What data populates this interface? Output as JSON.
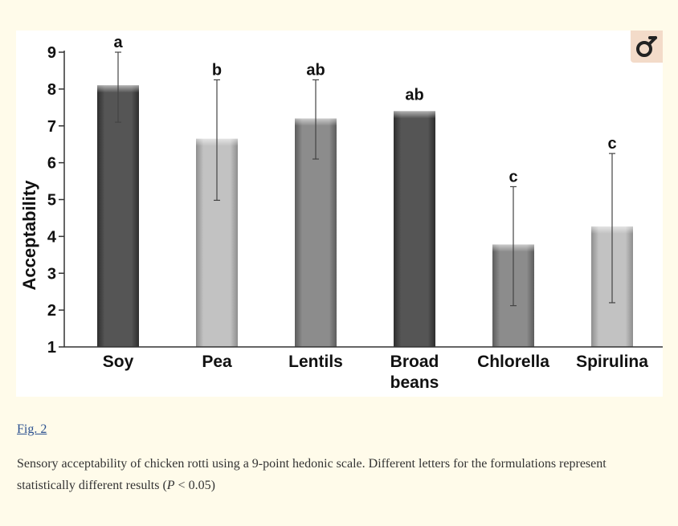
{
  "figure_link": "Fig. 2",
  "caption": {
    "part1": "Sensory acceptability of chicken rotti using a 9-point hedonic scale. Different letters for the formulations represent statistically different results (",
    "p_symbol": "P",
    "part2": " < 0.05)"
  },
  "zoom_icon": "magnify-icon",
  "colors": {
    "page_background": "#fffbea",
    "panel_background": "#ffffff",
    "link": "#2a4f8f",
    "bar_dark": "#505050",
    "bar_medium": "#8a8a8a",
    "bar_light": "#bdbdbd",
    "zoom_button": "#f3dbc9"
  },
  "chart_data": {
    "type": "bar",
    "ylabel": "Acceptability",
    "xlabel": "",
    "ylim": [
      1,
      9
    ],
    "yticks": [
      1,
      2,
      3,
      4,
      5,
      6,
      7,
      8,
      9
    ],
    "grid": false,
    "categories": [
      [
        "Soy"
      ],
      [
        "Pea"
      ],
      [
        "Lentils"
      ],
      [
        "Broad",
        "beans"
      ],
      [
        "Chlorella"
      ],
      [
        "Spirulina"
      ]
    ],
    "values": [
      8.1,
      6.65,
      7.2,
      7.4,
      3.78,
      4.27
    ],
    "error_bars": [
      [
        7.1,
        9.0
      ],
      [
        4.98,
        8.25
      ],
      [
        6.1,
        8.25
      ],
      null,
      [
        2.12,
        5.35
      ],
      [
        2.2,
        6.25
      ]
    ],
    "significance_letters": [
      "a",
      "b",
      "ab",
      "ab",
      "c",
      "c"
    ],
    "bar_shades": [
      "dark",
      "light",
      "medium",
      "dark",
      "medium",
      "light"
    ]
  }
}
